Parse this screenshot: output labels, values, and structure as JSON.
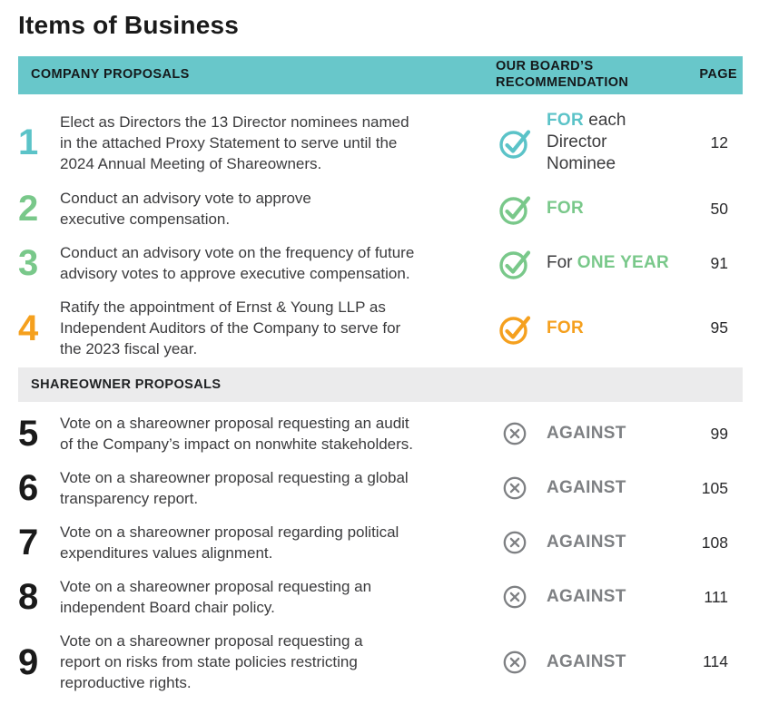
{
  "page": {
    "title": "Items of Business"
  },
  "table": {
    "header": {
      "company": "COMPANY PROPOSALS",
      "recommendation": "OUR BOARD’S RECOMMENDATION",
      "page": "PAGE"
    },
    "section2_label": "SHAREOWNER PROPOSALS",
    "colors": {
      "teal": "#5BC3C8",
      "green": "#79C88A",
      "orange": "#F5A01E",
      "gray": "#7E8083",
      "dark": "#3B3B3D",
      "black": "#1A1A1A",
      "header_bg": "#68C7CA",
      "section_bg": "#EBEBEC"
    },
    "rows": [
      {
        "section": "company",
        "num": "1",
        "num_color": "teal",
        "icon": "check",
        "icon_color": "teal",
        "text": "Elect as Directors the 13 Director nominees named\nin the attached Proxy Statement to serve until the\n2024 Annual Meeting of Shareowners.",
        "rec": [
          {
            "t": "FOR",
            "b": true,
            "c": "teal"
          },
          {
            "t": " each\nDirector\nNominee",
            "b": false,
            "c": "dark"
          }
        ],
        "page": "12"
      },
      {
        "section": "company",
        "num": "2",
        "num_color": "green",
        "icon": "check",
        "icon_color": "green",
        "text": "Conduct an advisory vote to approve\nexecutive compensation.",
        "rec": [
          {
            "t": "FOR",
            "b": true,
            "c": "green"
          }
        ],
        "page": "50"
      },
      {
        "section": "company",
        "num": "3",
        "num_color": "green",
        "icon": "check",
        "icon_color": "green",
        "text": "Conduct an advisory vote on the frequency of future\nadvisory votes to approve executive compensation.",
        "rec": [
          {
            "t": "For ",
            "b": false,
            "c": "dark"
          },
          {
            "t": "ONE YEAR",
            "b": true,
            "c": "green"
          }
        ],
        "page": "91"
      },
      {
        "section": "company",
        "num": "4",
        "num_color": "orange",
        "icon": "check",
        "icon_color": "orange",
        "text": "Ratify the appointment of Ernst & Young LLP as\nIndependent Auditors of the Company to serve for\nthe 2023 fiscal year.",
        "rec": [
          {
            "t": "FOR",
            "b": true,
            "c": "orange"
          }
        ],
        "page": "95"
      },
      {
        "section": "shareowner",
        "num": "5",
        "num_color": "black",
        "icon": "x",
        "icon_color": "gray",
        "text": "Vote on a shareowner proposal requesting an audit\nof the Company’s impact on nonwhite stakeholders.",
        "rec": [
          {
            "t": "AGAINST",
            "b": true,
            "c": "gray"
          }
        ],
        "page": "99"
      },
      {
        "section": "shareowner",
        "num": "6",
        "num_color": "black",
        "icon": "x",
        "icon_color": "gray",
        "text": "Vote on a shareowner proposal requesting a global\ntransparency report.",
        "rec": [
          {
            "t": "AGAINST",
            "b": true,
            "c": "gray"
          }
        ],
        "page": "105"
      },
      {
        "section": "shareowner",
        "num": "7",
        "num_color": "black",
        "icon": "x",
        "icon_color": "gray",
        "text": "Vote on a shareowner proposal regarding political\nexpenditures values alignment.",
        "rec": [
          {
            "t": "AGAINST",
            "b": true,
            "c": "gray"
          }
        ],
        "page": "108"
      },
      {
        "section": "shareowner",
        "num": "8",
        "num_color": "black",
        "icon": "x",
        "icon_color": "gray",
        "text": "Vote on a shareowner proposal requesting an\nindependent Board chair policy.",
        "rec": [
          {
            "t": "AGAINST",
            "b": true,
            "c": "gray"
          }
        ],
        "page": "111"
      },
      {
        "section": "shareowner",
        "num": "9",
        "num_color": "black",
        "icon": "x",
        "icon_color": "gray",
        "text": "Vote on a shareowner proposal requesting a\nreport on risks from state policies restricting\nreproductive rights.",
        "rec": [
          {
            "t": "AGAINST",
            "b": true,
            "c": "gray"
          }
        ],
        "page": "114"
      }
    ]
  }
}
